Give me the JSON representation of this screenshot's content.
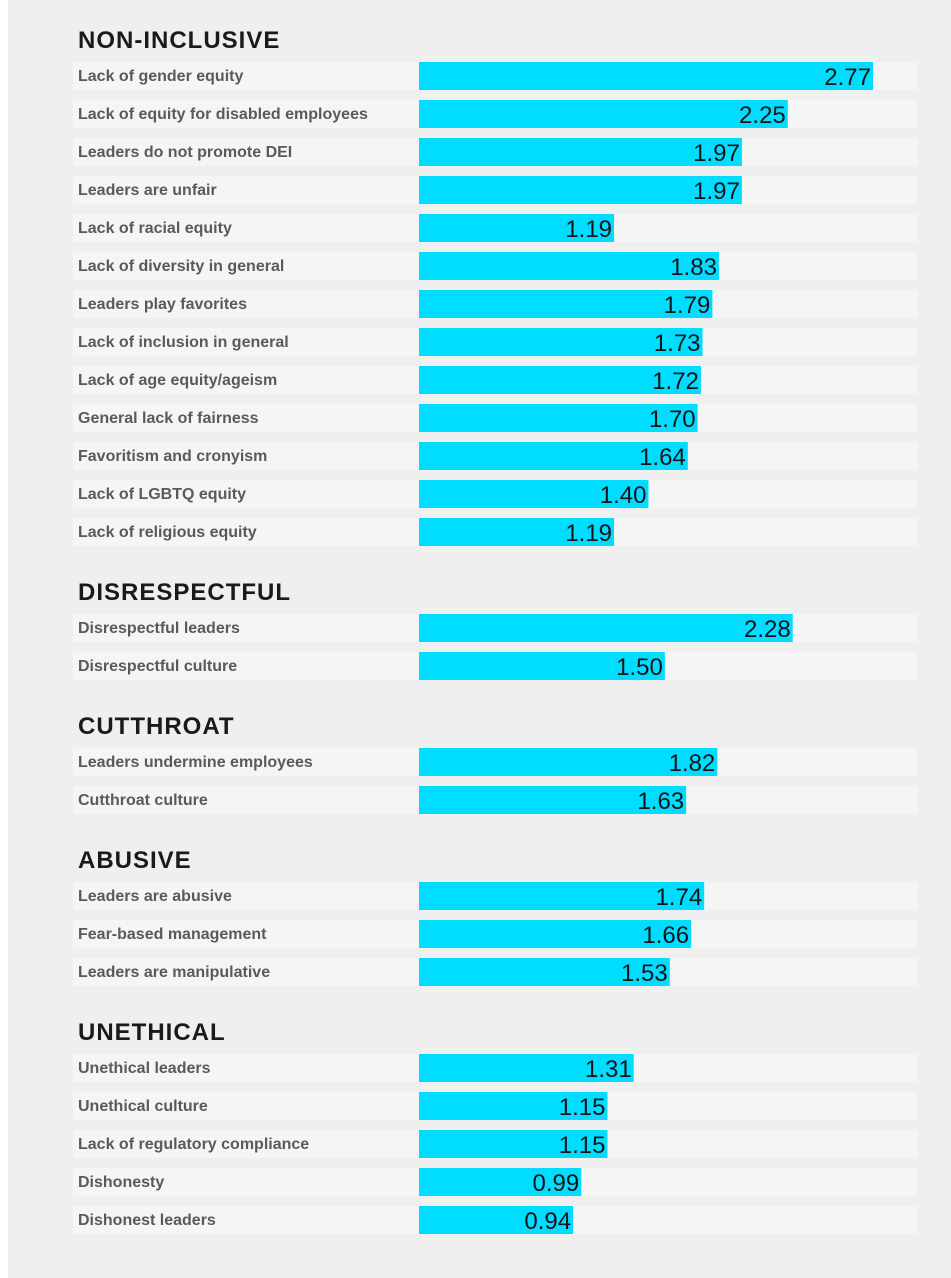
{
  "chart_data": {
    "type": "bar",
    "orientation": "horizontal",
    "bar_color": "#00ddff",
    "row_background": "#f5f5f5",
    "panel_background": "#efefef",
    "xlim": [
      0,
      3.0
    ],
    "groups": [
      {
        "title": "NON-INCLUSIVE",
        "categories": [
          "Lack of gender equity",
          "Lack of equity for disabled employees",
          "Leaders do not promote DEI",
          "Leaders are unfair",
          "Lack of racial equity",
          "Lack of diversity in general",
          "Leaders play favorites",
          "Lack of inclusion in general",
          "Lack of age equity/ageism",
          "General lack of fairness",
          "Favoritism and cronyism",
          "Lack of LGBTQ equity",
          "Lack of religious equity"
        ],
        "values": [
          2.77,
          2.25,
          1.97,
          1.97,
          1.19,
          1.83,
          1.79,
          1.73,
          1.72,
          1.7,
          1.64,
          1.4,
          1.19
        ],
        "labels": [
          "2.77",
          "2.25",
          "1.97",
          "1.97",
          "1.19",
          "1.83",
          "1.79",
          "1.73",
          "1.72",
          "1.70",
          "1.64",
          "1.40",
          "1.19"
        ]
      },
      {
        "title": "DISRESPECTFUL",
        "categories": [
          "Disrespectful leaders",
          "Disrespectful culture"
        ],
        "values": [
          2.28,
          1.5
        ],
        "labels": [
          "2.28",
          "1.50"
        ]
      },
      {
        "title": "CUTTHROAT",
        "categories": [
          "Leaders undermine employees",
          "Cutthroat culture"
        ],
        "values": [
          1.82,
          1.63
        ],
        "labels": [
          "1.82",
          "1.63"
        ]
      },
      {
        "title": "ABUSIVE",
        "categories": [
          "Leaders are abusive",
          "Fear-based management",
          "Leaders are manipulative"
        ],
        "values": [
          1.74,
          1.66,
          1.53
        ],
        "labels": [
          "1.74",
          "1.66",
          "1.53"
        ]
      },
      {
        "title": "UNETHICAL",
        "categories": [
          "Unethical leaders",
          "Unethical culture",
          "Lack of regulatory compliance",
          "Dishonesty",
          "Dishonest leaders"
        ],
        "values": [
          1.31,
          1.15,
          1.15,
          0.99,
          0.94
        ],
        "labels": [
          "1.31",
          "1.15",
          "1.15",
          "0.99",
          "0.94"
        ]
      }
    ]
  }
}
